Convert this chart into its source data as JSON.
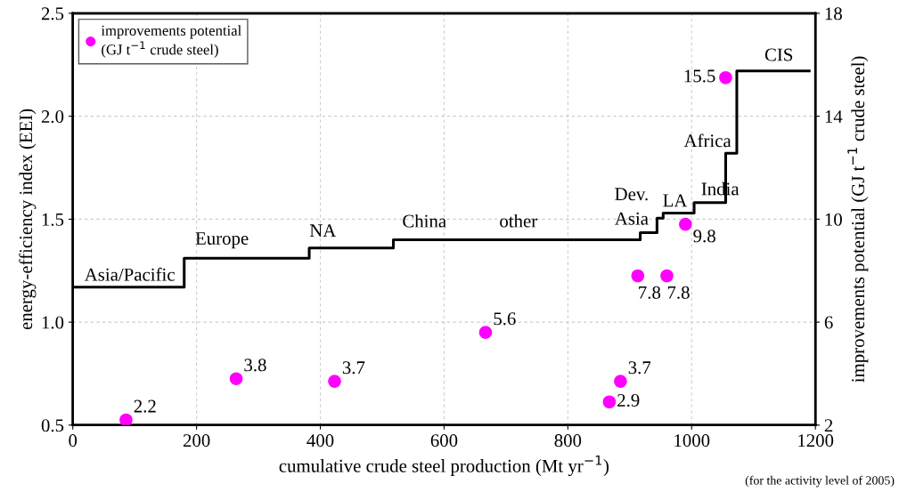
{
  "chart_data": {
    "type": "step",
    "xlabel": "cumulative crude steel production (Mt yr$^{−1}$)",
    "ylabel": "energy-efficiency index (EEI)",
    "y2label": "improvements potential (GJ t$^{−1}$ crude steel)",
    "xlim": [
      0,
      1200
    ],
    "xticks": [
      0,
      200,
      400,
      600,
      800,
      1000,
      1200
    ],
    "ylim": [
      0.5,
      2.5
    ],
    "yticks": [
      {
        "value": 0.5,
        "label": "0.5"
      },
      {
        "value": 1.0,
        "label": "1.0"
      },
      {
        "value": 1.5,
        "label": "1.5"
      },
      {
        "value": 2.0,
        "label": "2.0"
      },
      {
        "value": 2.5,
        "label": "2.5"
      }
    ],
    "y2lim": [
      2,
      18
    ],
    "y2ticks": [
      2,
      6,
      10,
      14,
      18
    ],
    "grid": true,
    "legend": "top left",
    "series": [
      {
        "color": "#000000",
        "x": [
          0,
          180,
          382,
          518,
          917,
          944,
          954,
          1004,
          1055,
          1073,
          1190
        ],
        "values": [
          1.17,
          1.31,
          1.36,
          1.4,
          1.435,
          1.505,
          1.53,
          1.58,
          1.82,
          2.22,
          2.22
        ]
      },
      {
        "type": "scatter",
        "name": "improvements potential\n(GJ t$^{−1}$ crude steel)",
        "color": "#ff00ff",
        "axis": "y2",
        "marker": "circle",
        "data_labels": true,
        "x": [
          86,
          264,
          423,
          667,
          867,
          885,
          913,
          960,
          990,
          1055
        ],
        "values": [
          2.2,
          3.8,
          3.7,
          5.6,
          2.9,
          3.7,
          7.8,
          7.8,
          9.8,
          15.5
        ]
      }
    ],
    "annotations": [
      {
        "text": "Asia/Pacific",
        "x": 92,
        "y": 1.17
      },
      {
        "text": "Europe",
        "x": 241,
        "y": 1.31
      },
      {
        "text": "NA",
        "x": 404,
        "y": 1.36
      },
      {
        "text": "China",
        "x": 568,
        "y": 1.4
      },
      {
        "text": "other",
        "x": 720,
        "y": 1.4
      },
      {
        "text": "Dev.\nAsia",
        "x": 903,
        "y": 1.4
      },
      {
        "text": "LA",
        "x": 973,
        "y": 1.53
      },
      {
        "text": "India",
        "x": 1046,
        "y": 1.58
      },
      {
        "text": "Africa",
        "x": 1064,
        "y": 1.82
      },
      {
        "text": "CIS",
        "x": 1141,
        "y": 2.22
      },
      "(for the activity level of 2005)"
    ]
  }
}
